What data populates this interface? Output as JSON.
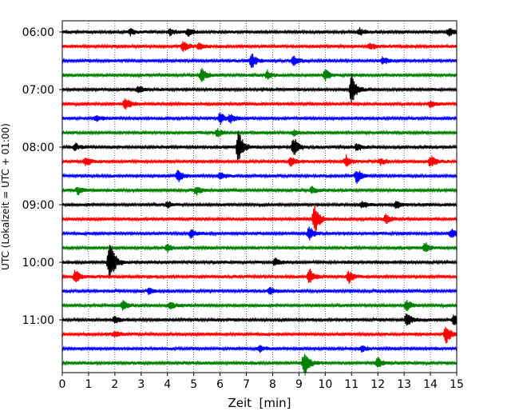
{
  "chart_data": {
    "type": "line",
    "title": "",
    "xlabel": "Zeit  [min]",
    "ylabel": "UTC (Lokalzeit = UTC + 01:00)",
    "xlim": [
      0,
      15
    ],
    "x_ticks": [
      0,
      1,
      2,
      3,
      4,
      5,
      6,
      7,
      8,
      9,
      10,
      11,
      12,
      13,
      14,
      15
    ],
    "x_tick_labels": [
      "0",
      "1",
      "2",
      "3",
      "4",
      "5",
      "6",
      "7",
      "8",
      "9",
      "10",
      "11",
      "12",
      "13",
      "14",
      "15"
    ],
    "y_tick_labels": [
      "06:00",
      "07:00",
      "08:00",
      "09:00",
      "10:00",
      "11:00"
    ],
    "y_tick_traces": [
      0,
      4,
      8,
      12,
      16,
      20
    ],
    "trace_minutes": 15,
    "grid_x": true,
    "grid_style": "dotted",
    "trace_colors": [
      "#000000",
      "#ff0000",
      "#0000ff",
      "#008000"
    ],
    "series": [
      {
        "start": "06:00",
        "events": [
          {
            "t": 2.6,
            "amp": 0.25
          },
          {
            "t": 4.1,
            "amp": 0.3
          },
          {
            "t": 4.8,
            "amp": 0.35
          },
          {
            "t": 11.3,
            "amp": 0.3
          },
          {
            "t": 14.7,
            "amp": 0.35
          }
        ]
      },
      {
        "start": "06:15",
        "events": [
          {
            "t": 4.6,
            "amp": 0.45
          },
          {
            "t": 5.2,
            "amp": 0.3
          },
          {
            "t": 11.7,
            "amp": 0.3
          }
        ]
      },
      {
        "start": "06:30",
        "events": [
          {
            "t": 7.2,
            "amp": 0.6
          },
          {
            "t": 8.8,
            "amp": 0.4
          },
          {
            "t": 12.2,
            "amp": 0.3
          }
        ]
      },
      {
        "start": "06:45",
        "events": [
          {
            "t": 5.3,
            "amp": 0.55
          },
          {
            "t": 7.8,
            "amp": 0.35
          },
          {
            "t": 10.0,
            "amp": 0.45
          }
        ]
      },
      {
        "start": "07:00",
        "events": [
          {
            "t": 2.9,
            "amp": 0.3
          },
          {
            "t": 11.0,
            "amp": 1.3
          }
        ]
      },
      {
        "start": "07:15",
        "events": [
          {
            "t": 2.4,
            "amp": 0.55
          },
          {
            "t": 14.0,
            "amp": 0.3
          }
        ]
      },
      {
        "start": "07:30",
        "events": [
          {
            "t": 1.3,
            "amp": 0.25
          },
          {
            "t": 6.0,
            "amp": 0.45
          },
          {
            "t": 6.4,
            "amp": 0.35
          }
        ]
      },
      {
        "start": "07:45",
        "events": [
          {
            "t": 5.9,
            "amp": 0.3
          },
          {
            "t": 8.8,
            "amp": 0.25
          }
        ]
      },
      {
        "start": "08:00",
        "events": [
          {
            "t": 0.5,
            "amp": 0.3
          },
          {
            "t": 6.7,
            "amp": 1.4
          },
          {
            "t": 8.8,
            "amp": 0.8
          },
          {
            "t": 11.2,
            "amp": 0.3
          }
        ]
      },
      {
        "start": "08:15",
        "events": [
          {
            "t": 0.9,
            "amp": 0.35
          },
          {
            "t": 8.7,
            "amp": 0.4
          },
          {
            "t": 10.8,
            "amp": 0.45
          },
          {
            "t": 12.1,
            "amp": 0.3
          },
          {
            "t": 14.0,
            "amp": 0.5
          }
        ]
      },
      {
        "start": "08:30",
        "events": [
          {
            "t": 4.4,
            "amp": 0.5
          },
          {
            "t": 6.0,
            "amp": 0.3
          },
          {
            "t": 11.2,
            "amp": 0.6
          }
        ]
      },
      {
        "start": "08:45",
        "events": [
          {
            "t": 0.6,
            "amp": 0.3
          },
          {
            "t": 5.1,
            "amp": 0.35
          },
          {
            "t": 9.5,
            "amp": 0.3
          }
        ]
      },
      {
        "start": "09:00",
        "events": [
          {
            "t": 4.0,
            "amp": 0.25
          },
          {
            "t": 11.4,
            "amp": 0.25
          },
          {
            "t": 12.7,
            "amp": 0.3
          }
        ]
      },
      {
        "start": "09:15",
        "events": [
          {
            "t": 9.6,
            "amp": 1.2
          },
          {
            "t": 12.3,
            "amp": 0.4
          }
        ]
      },
      {
        "start": "09:30",
        "events": [
          {
            "t": 4.9,
            "amp": 0.35
          },
          {
            "t": 9.4,
            "amp": 0.6
          },
          {
            "t": 14.8,
            "amp": 0.35
          }
        ]
      },
      {
        "start": "09:45",
        "events": [
          {
            "t": 4.0,
            "amp": 0.3
          },
          {
            "t": 13.8,
            "amp": 0.45
          }
        ]
      },
      {
        "start": "10:00",
        "events": [
          {
            "t": 1.8,
            "amp": 2.0
          },
          {
            "t": 8.1,
            "amp": 0.3
          }
        ]
      },
      {
        "start": "10:15",
        "events": [
          {
            "t": 0.5,
            "amp": 0.55
          },
          {
            "t": 9.4,
            "amp": 0.6
          },
          {
            "t": 10.9,
            "amp": 0.5
          }
        ]
      },
      {
        "start": "10:30",
        "events": [
          {
            "t": 3.3,
            "amp": 0.25
          },
          {
            "t": 7.9,
            "amp": 0.3
          }
        ]
      },
      {
        "start": "10:45",
        "events": [
          {
            "t": 2.3,
            "amp": 0.4
          },
          {
            "t": 4.1,
            "amp": 0.35
          },
          {
            "t": 13.1,
            "amp": 0.45
          }
        ]
      },
      {
        "start": "11:00",
        "events": [
          {
            "t": 2.0,
            "amp": 0.3
          },
          {
            "t": 13.1,
            "amp": 0.6
          },
          {
            "t": 14.9,
            "amp": 0.5
          }
        ]
      },
      {
        "start": "11:15",
        "events": [
          {
            "t": 2.0,
            "amp": 0.3
          },
          {
            "t": 14.6,
            "amp": 0.8
          }
        ]
      },
      {
        "start": "11:30",
        "events": [
          {
            "t": 7.5,
            "amp": 0.3
          },
          {
            "t": 11.4,
            "amp": 0.25
          }
        ]
      },
      {
        "start": "11:45",
        "events": [
          {
            "t": 9.2,
            "amp": 1.1
          },
          {
            "t": 12.0,
            "amp": 0.45
          }
        ]
      }
    ]
  }
}
